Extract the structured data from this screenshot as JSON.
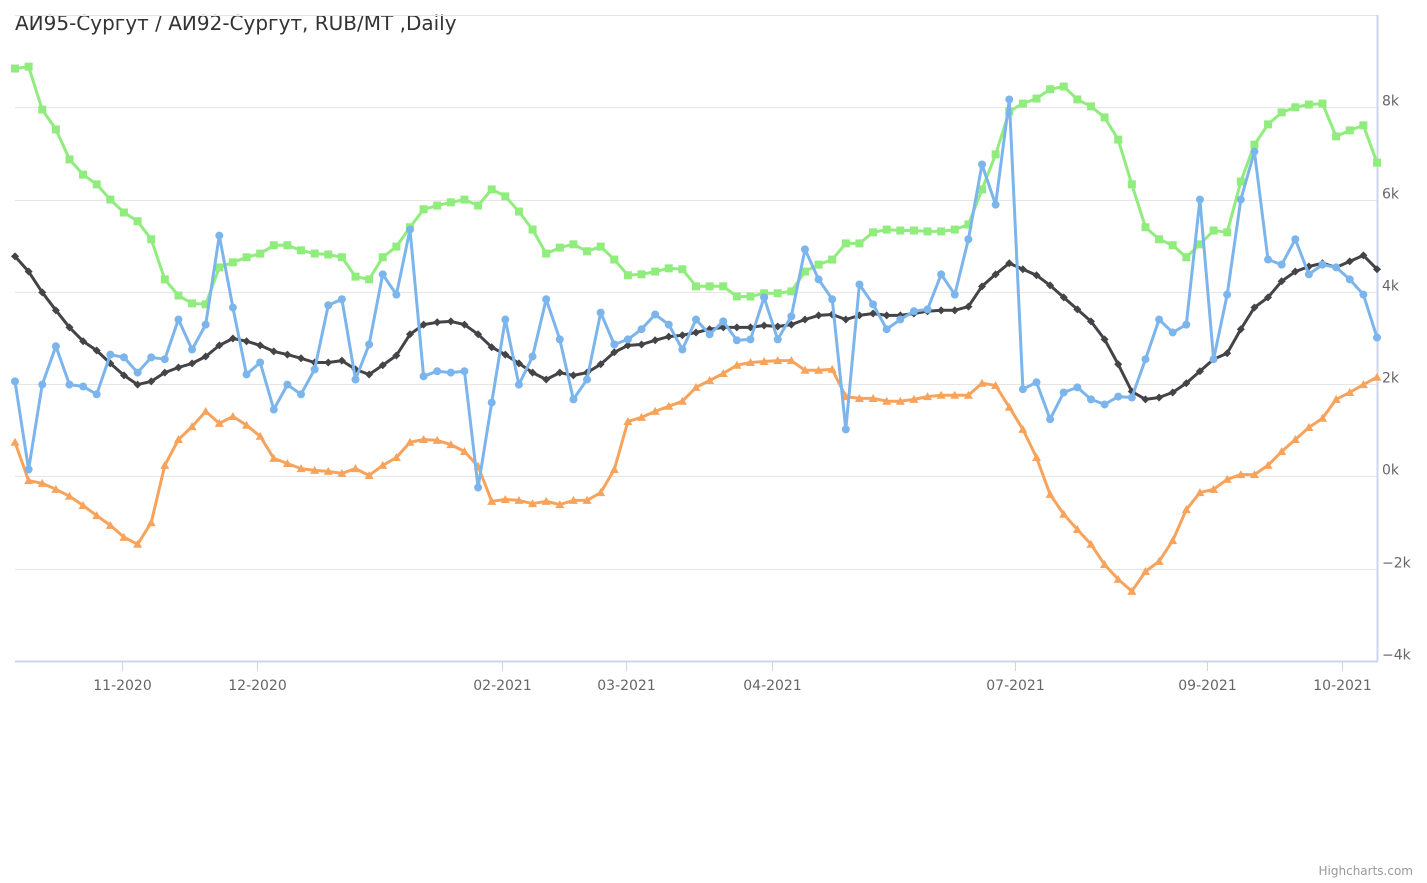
{
  "chart_data": {
    "type": "line",
    "title": "АИ95-Сургут / АИ92-Сургут, RUB/MT ,Daily",
    "xlabel": "",
    "ylabel": "",
    "ylim": [
      -4000,
      10000
    ],
    "grid": true,
    "yaxis_side": "right",
    "yticks": [
      {
        "value": -4000,
        "label": "−4k"
      },
      {
        "value": -2000,
        "label": "−2k"
      },
      {
        "value": 0,
        "label": "0k"
      },
      {
        "value": 2000,
        "label": "2k"
      },
      {
        "value": 4000,
        "label": "4k"
      },
      {
        "value": 6000,
        "label": "6k"
      },
      {
        "value": 8000,
        "label": "8k"
      },
      {
        "value": 10000,
        "label": ""
      }
    ],
    "xrange": [
      0,
      100
    ],
    "xticks": [
      {
        "at": 7.86,
        "label": "11-2020"
      },
      {
        "at": 17.77,
        "label": "12-2020"
      },
      {
        "at": 35.76,
        "label": "02-2021"
      },
      {
        "at": 44.86,
        "label": "03-2021"
      },
      {
        "at": 55.58,
        "label": "04-2021"
      },
      {
        "at": 73.42,
        "label": "07-2021"
      },
      {
        "at": 87.52,
        "label": "09-2021"
      },
      {
        "at": 97.43,
        "label": "10-2021"
      }
    ],
    "series": [
      {
        "key": "green",
        "color": "#90ed7d",
        "marker": "square",
        "values": [
          8840,
          8880,
          7950,
          7520,
          6870,
          6540,
          6330,
          6000,
          5720,
          5530,
          5140,
          4270,
          3920,
          3750,
          3730,
          4530,
          4640,
          4750,
          4830,
          5010,
          5010,
          4900,
          4830,
          4810,
          4750,
          4330,
          4270,
          4750,
          4980,
          5400,
          5790,
          5870,
          5940,
          6000,
          5870,
          6220,
          6070,
          5740,
          5350,
          4830,
          4960,
          5030,
          4880,
          4980,
          4700,
          4360,
          4380,
          4440,
          4510,
          4490,
          4120,
          4120,
          4120,
          3900,
          3900,
          3970,
          3970,
          4010,
          4440,
          4590,
          4700,
          5050,
          5050,
          5290,
          5350,
          5330,
          5330,
          5310,
          5310,
          5350,
          5460,
          6220,
          6980,
          7910,
          8080,
          8190,
          8390,
          8450,
          8170,
          8020,
          7780,
          7300,
          6330,
          5400,
          5140,
          5010,
          4750,
          5030,
          5330,
          5290,
          6390,
          7190,
          7630,
          7890,
          8000,
          8060,
          8080,
          7370,
          7500,
          7610,
          6800
        ]
      },
      {
        "key": "black",
        "color": "#434348",
        "marker": "diamond",
        "values": [
          4770,
          4440,
          3990,
          3600,
          3230,
          2930,
          2730,
          2450,
          2190,
          1990,
          2060,
          2250,
          2360,
          2450,
          2600,
          2840,
          2990,
          2930,
          2840,
          2710,
          2640,
          2560,
          2470,
          2470,
          2510,
          2320,
          2210,
          2410,
          2620,
          3080,
          3290,
          3340,
          3360,
          3290,
          3080,
          2800,
          2640,
          2450,
          2250,
          2100,
          2250,
          2190,
          2250,
          2430,
          2690,
          2840,
          2860,
          2950,
          3030,
          3060,
          3120,
          3190,
          3230,
          3230,
          3230,
          3270,
          3250,
          3290,
          3400,
          3490,
          3510,
          3400,
          3490,
          3530,
          3490,
          3490,
          3530,
          3580,
          3600,
          3600,
          3680,
          4120,
          4380,
          4620,
          4490,
          4360,
          4140,
          3880,
          3620,
          3360,
          2970,
          2430,
          1840,
          1670,
          1710,
          1820,
          2020,
          2280,
          2540,
          2670,
          3190,
          3660,
          3880,
          4230,
          4440,
          4550,
          4620,
          4530,
          4660,
          4790,
          4490
        ]
      },
      {
        "key": "orange",
        "color": "#f7a35c",
        "marker": "triangle",
        "values": [
          740,
          -90,
          -150,
          -280,
          -430,
          -630,
          -850,
          -1060,
          -1320,
          -1470,
          -1000,
          240,
          800,
          1080,
          1410,
          1150,
          1300,
          1110,
          870,
          390,
          280,
          170,
          130,
          110,
          65,
          170,
          20,
          240,
          410,
          740,
          800,
          780,
          690,
          540,
          220,
          -540,
          -500,
          -520,
          -590,
          -540,
          -610,
          -520,
          -520,
          -350,
          150,
          1190,
          1280,
          1410,
          1520,
          1630,
          1930,
          2080,
          2230,
          2410,
          2470,
          2490,
          2510,
          2510,
          2300,
          2300,
          2320,
          1730,
          1690,
          1690,
          1630,
          1630,
          1670,
          1730,
          1760,
          1760,
          1760,
          2020,
          1970,
          1500,
          1020,
          410,
          -390,
          -820,
          -1150,
          -1470,
          -1910,
          -2230,
          -2490,
          -2060,
          -1840,
          -1390,
          -720,
          -350,
          -280,
          -65,
          40,
          40,
          240,
          540,
          800,
          1060,
          1260,
          1670,
          1820,
          1990,
          2150
        ]
      },
      {
        "key": "blue",
        "color": "#7cb5ec",
        "marker": "circle",
        "values": [
          2060,
          150,
          1990,
          2820,
          1990,
          1950,
          1780,
          2640,
          2580,
          2250,
          2580,
          2540,
          3400,
          2750,
          3290,
          5220,
          3660,
          2210,
          2470,
          1450,
          1990,
          1780,
          2320,
          3710,
          3840,
          2100,
          2860,
          4380,
          3940,
          5350,
          2170,
          2280,
          2250,
          2280,
          -240,
          1600,
          3400,
          1990,
          2600,
          3840,
          2970,
          1670,
          2100,
          3550,
          2860,
          2970,
          3190,
          3510,
          3290,
          2750,
          3400,
          3080,
          3360,
          2950,
          2970,
          3880,
          2970,
          3470,
          4920,
          4270,
          3840,
          1020,
          4160,
          3730,
          3190,
          3400,
          3580,
          3620,
          4380,
          3940,
          5140,
          6760,
          5890,
          8170,
          1890,
          2040,
          1240,
          1820,
          1930,
          1670,
          1560,
          1730,
          1710,
          2540,
          3400,
          3120,
          3290,
          6000,
          2540,
          3940,
          6000,
          7040,
          4700,
          4590,
          5140,
          4380,
          4590,
          4530,
          4270,
          3940,
          3010
        ]
      }
    ]
  },
  "credits": "Highcharts.com"
}
